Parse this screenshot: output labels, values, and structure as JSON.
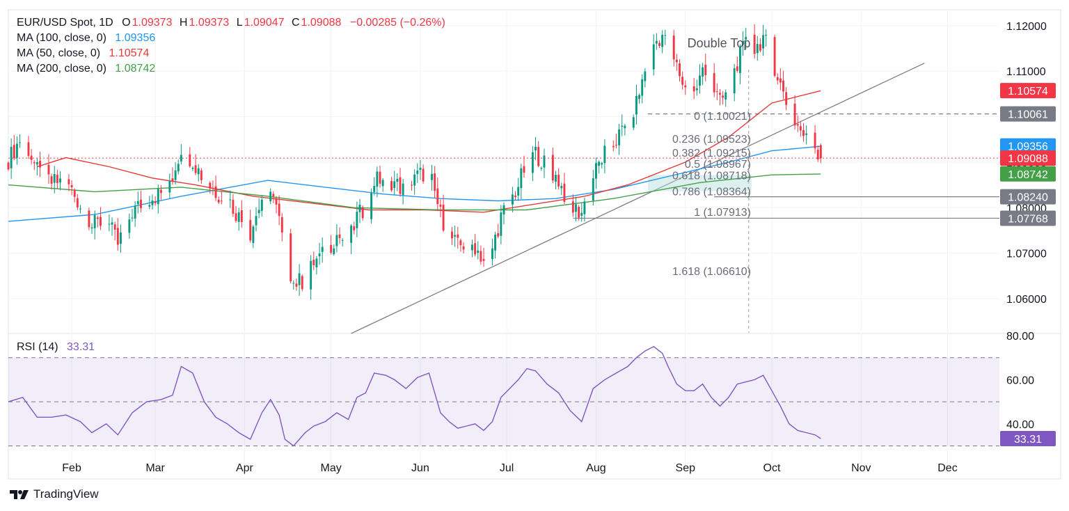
{
  "colors": {
    "bull": "#089981",
    "bear": "#f23645",
    "ma100": "#2196f3",
    "ma50": "#e53935",
    "ma200": "#43a047",
    "rsi": "#7e57c2",
    "grid": "#f0f3fa",
    "axis_text": "#131722",
    "fib_text": "#6a6d78",
    "line_gray": "#7b7d84",
    "price_tag_gray": "#787b86"
  },
  "header": {
    "symbol": "EUR/USD Spot, 1D",
    "o_label": "O",
    "o_value": "1.09373",
    "h_label": "H",
    "h_value": "1.09373",
    "l_label": "L",
    "l_value": "1.09047",
    "c_label": "C",
    "c_value": "1.09088",
    "change": "−0.00285 (−0.26%)"
  },
  "legend": {
    "ma100_label": "MA (100, close, 0)",
    "ma100_value": "1.09356",
    "ma50_label": "MA (50, close, 0)",
    "ma50_value": "1.10574",
    "ma200_label": "MA (200, close, 0)",
    "ma200_value": "1.08742"
  },
  "rsi_legend": {
    "label": "RSI (14)",
    "value": "33.31"
  },
  "brand": "TradingView",
  "chart_data": {
    "type": "candlestick",
    "title": "EUR/USD Spot, 1D",
    "annotation": "Double Top",
    "months": [
      {
        "label": "Feb",
        "day": 22
      },
      {
        "label": "Mar",
        "day": 51
      },
      {
        "label": "Apr",
        "day": 82
      },
      {
        "label": "May",
        "day": 112
      },
      {
        "label": "Jun",
        "day": 143
      },
      {
        "label": "Jul",
        "day": 173
      },
      {
        "label": "Aug",
        "day": 204
      },
      {
        "label": "Sep",
        "day": 235
      },
      {
        "label": "Oct",
        "day": 265
      },
      {
        "label": "Nov",
        "day": 296
      },
      {
        "label": "Dec",
        "day": 326
      }
    ],
    "x_range": [
      0,
      344
    ],
    "price_axis": {
      "range": [
        1.0525,
        1.1235
      ],
      "ticks": [
        "1.12000",
        "1.11000",
        "1.10000",
        "1.09000",
        "1.08000",
        "1.07000",
        "1.06000"
      ]
    },
    "price_tags": [
      {
        "value": 1.10574,
        "label": "1.10574",
        "kind": "ma50"
      },
      {
        "value": 1.10061,
        "label": "1.10061",
        "kind": "gray"
      },
      {
        "value": 1.09356,
        "label": "1.09356",
        "kind": "ma100"
      },
      {
        "value": 1.09088,
        "label": "1.09088",
        "kind": "bear"
      },
      {
        "value": 1.08742,
        "label": "1.08742",
        "kind": "ma200"
      },
      {
        "value": 1.0824,
        "label": "1.08240",
        "kind": "gray"
      },
      {
        "value": 1.07768,
        "label": "1.07768",
        "kind": "gray"
      }
    ],
    "fib_levels": [
      {
        "ratio": "0",
        "price": 1.10021,
        "label": "0 (1.10021)"
      },
      {
        "ratio": "0.236",
        "price": 1.09523,
        "label": "0.236 (1.09523)"
      },
      {
        "ratio": "0.382",
        "price": 1.09215,
        "label": "0.382 (1.09215)"
      },
      {
        "ratio": "0.5",
        "price": 1.08967,
        "label": "0.5 (1.08967)"
      },
      {
        "ratio": "0.618",
        "price": 1.08718,
        "label": "0.618 (1.08718)"
      },
      {
        "ratio": "0.786",
        "price": 1.08364,
        "label": "0.786 (1.08364)"
      },
      {
        "ratio": "1",
        "price": 1.07913,
        "label": "1 (1.07913)"
      },
      {
        "ratio": "1.618",
        "price": 1.0661,
        "label": "1.618 (1.06610)"
      }
    ],
    "horizontal_lines": [
      {
        "price": 1.10061,
        "from_day": 222,
        "to_day": 344,
        "style": "dashed"
      },
      {
        "price": 1.0824,
        "from_day": 245,
        "to_day": 344,
        "style": "solid"
      },
      {
        "price": 1.07768,
        "from_day": 196,
        "to_day": 344,
        "style": "solid"
      }
    ],
    "trendline": {
      "p1": {
        "day": 119,
        "price": 1.05235
      },
      "p2": {
        "day": 318,
        "price": 1.11177
      }
    },
    "current_price": 1.09088,
    "price_path": [
      [
        0,
        1.0905
      ],
      [
        5,
        1.096
      ],
      [
        10,
        1.088
      ],
      [
        15,
        1.0855
      ],
      [
        20,
        1.086
      ],
      [
        25,
        1.0805
      ],
      [
        29,
        1.076
      ],
      [
        34,
        1.0775
      ],
      [
        38,
        1.072
      ],
      [
        43,
        1.079
      ],
      [
        48,
        1.082
      ],
      [
        53,
        1.083
      ],
      [
        57,
        1.087
      ],
      [
        60,
        1.093
      ],
      [
        64,
        1.0905
      ],
      [
        68,
        1.086
      ],
      [
        72,
        1.0835
      ],
      [
        76,
        1.082
      ],
      [
        80,
        1.078
      ],
      [
        84,
        1.0745
      ],
      [
        88,
        1.082
      ],
      [
        91,
        1.085
      ],
      [
        94,
        1.077
      ],
      [
        96,
        1.07
      ],
      [
        99,
        1.0635
      ],
      [
        103,
        1.064
      ],
      [
        106,
        1.068
      ],
      [
        110,
        1.07
      ],
      [
        114,
        1.074
      ],
      [
        118,
        1.072
      ],
      [
        121,
        1.078
      ],
      [
        124,
        1.08
      ],
      [
        127,
        1.086
      ],
      [
        131,
        1.0865
      ],
      [
        134,
        1.0855
      ],
      [
        138,
        1.0835
      ],
      [
        142,
        1.087
      ],
      [
        146,
        1.088
      ],
      [
        150,
        1.0785
      ],
      [
        153,
        1.074
      ],
      [
        156,
        1.0715
      ],
      [
        159,
        1.072
      ],
      [
        162,
        1.0715
      ],
      [
        165,
        1.0685
      ],
      [
        168,
        1.071
      ],
      [
        171,
        1.078
      ],
      [
        174,
        1.081
      ],
      [
        177,
        1.085
      ],
      [
        180,
        1.09
      ],
      [
        183,
        1.092
      ],
      [
        187,
        1.089
      ],
      [
        191,
        1.086
      ],
      [
        195,
        1.08
      ],
      [
        199,
        1.079
      ],
      [
        203,
        1.087
      ],
      [
        207,
        1.092
      ],
      [
        211,
        1.095
      ],
      [
        215,
        1.0985
      ],
      [
        218,
        1.103
      ],
      [
        221,
        1.11
      ],
      [
        224,
        1.116
      ],
      [
        227,
        1.118
      ],
      [
        229,
        1.115
      ],
      [
        232,
        1.111
      ],
      [
        235,
        1.106
      ],
      [
        238,
        1.105
      ],
      [
        241,
        1.11
      ],
      [
        244,
        1.1075
      ],
      [
        247,
        1.103
      ],
      [
        250,
        1.106
      ],
      [
        253,
        1.112
      ],
      [
        256,
        1.116
      ],
      [
        259,
        1.1145
      ],
      [
        262,
        1.1175
      ],
      [
        265,
        1.113
      ],
      [
        268,
        1.107
      ],
      [
        271,
        1.101
      ],
      [
        274,
        1.098
      ],
      [
        277,
        1.095
      ],
      [
        280,
        1.0935
      ],
      [
        282,
        1.0909
      ]
    ],
    "ma_series": [
      {
        "name": "MA 100",
        "value": 1.09356,
        "path": [
          [
            0,
            1.077
          ],
          [
            30,
            1.0785
          ],
          [
            60,
            1.0825
          ],
          [
            90,
            1.086
          ],
          [
            110,
            1.0845
          ],
          [
            130,
            1.083
          ],
          [
            150,
            1.082
          ],
          [
            170,
            1.0815
          ],
          [
            190,
            1.082
          ],
          [
            210,
            1.084
          ],
          [
            230,
            1.087
          ],
          [
            250,
            1.09
          ],
          [
            265,
            1.0925
          ],
          [
            282,
            1.0935
          ]
        ]
      },
      {
        "name": "MA 50",
        "value": 1.10574,
        "path": [
          [
            10,
            1.089
          ],
          [
            20,
            1.091
          ],
          [
            35,
            1.089
          ],
          [
            50,
            1.0865
          ],
          [
            65,
            1.085
          ],
          [
            85,
            1.0825
          ],
          [
            105,
            1.081
          ],
          [
            125,
            1.0795
          ],
          [
            145,
            1.0795
          ],
          [
            165,
            1.079
          ],
          [
            185,
            1.081
          ],
          [
            200,
            1.0825
          ],
          [
            215,
            1.085
          ],
          [
            235,
            1.09
          ],
          [
            250,
            1.0955
          ],
          [
            265,
            1.103
          ],
          [
            282,
            1.1057
          ]
        ]
      },
      {
        "name": "MA 200",
        "value": 1.08742,
        "path": [
          [
            0,
            1.085
          ],
          [
            30,
            1.0835
          ],
          [
            60,
            1.0845
          ],
          [
            90,
            1.0825
          ],
          [
            120,
            1.08
          ],
          [
            150,
            1.0795
          ],
          [
            180,
            1.0795
          ],
          [
            210,
            1.082
          ],
          [
            240,
            1.0855
          ],
          [
            265,
            1.0872
          ],
          [
            282,
            1.0874
          ]
        ]
      }
    ],
    "rsi": {
      "label": "RSI (14)",
      "current": 33.31,
      "range": [
        27,
        80
      ],
      "bands": {
        "upper": 70,
        "middle": 50,
        "lower": 30
      },
      "ticks": [
        "80.00",
        "60.00",
        "40.00"
      ],
      "path": [
        [
          0,
          50
        ],
        [
          5,
          52
        ],
        [
          10,
          43
        ],
        [
          15,
          43
        ],
        [
          20,
          44
        ],
        [
          25,
          41
        ],
        [
          29,
          36
        ],
        [
          34,
          40
        ],
        [
          38,
          35
        ],
        [
          43,
          45
        ],
        [
          48,
          50
        ],
        [
          53,
          51
        ],
        [
          57,
          53
        ],
        [
          60,
          66
        ],
        [
          64,
          63
        ],
        [
          68,
          50
        ],
        [
          72,
          43
        ],
        [
          76,
          40
        ],
        [
          80,
          36
        ],
        [
          84,
          33
        ],
        [
          88,
          45
        ],
        [
          91,
          51
        ],
        [
          94,
          44
        ],
        [
          96,
          33
        ],
        [
          99,
          30
        ],
        [
          103,
          36
        ],
        [
          106,
          39
        ],
        [
          110,
          41
        ],
        [
          114,
          45
        ],
        [
          118,
          42
        ],
        [
          121,
          52
        ],
        [
          124,
          54
        ],
        [
          127,
          63
        ],
        [
          131,
          62
        ],
        [
          134,
          60
        ],
        [
          138,
          56
        ],
        [
          142,
          61
        ],
        [
          146,
          63
        ],
        [
          150,
          45
        ],
        [
          153,
          41
        ],
        [
          156,
          38
        ],
        [
          159,
          39
        ],
        [
          162,
          40
        ],
        [
          165,
          37
        ],
        [
          168,
          41
        ],
        [
          171,
          52
        ],
        [
          174,
          56
        ],
        [
          177,
          60
        ],
        [
          180,
          65
        ],
        [
          183,
          64
        ],
        [
          187,
          58
        ],
        [
          191,
          54
        ],
        [
          195,
          46
        ],
        [
          199,
          41
        ],
        [
          203,
          56
        ],
        [
          207,
          60
        ],
        [
          211,
          63
        ],
        [
          215,
          66
        ],
        [
          218,
          70
        ],
        [
          221,
          73
        ],
        [
          224,
          75
        ],
        [
          227,
          72
        ],
        [
          229,
          66
        ],
        [
          232,
          58
        ],
        [
          235,
          55
        ],
        [
          238,
          55
        ],
        [
          241,
          58
        ],
        [
          244,
          52
        ],
        [
          247,
          48
        ],
        [
          250,
          52
        ],
        [
          253,
          58
        ],
        [
          256,
          59
        ],
        [
          259,
          60
        ],
        [
          262,
          62
        ],
        [
          265,
          55
        ],
        [
          268,
          48
        ],
        [
          271,
          40
        ],
        [
          274,
          37
        ],
        [
          277,
          36
        ],
        [
          280,
          35
        ],
        [
          282,
          33.3
        ]
      ]
    }
  }
}
